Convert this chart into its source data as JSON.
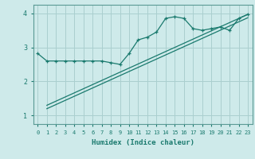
{
  "bg_color": "#ceeaea",
  "grid_color": "#aacfcf",
  "line_color": "#1a7a6e",
  "x_label": "Humidex (Indice chaleur)",
  "xlim": [
    -0.5,
    23.5
  ],
  "ylim": [
    0.75,
    4.25
  ],
  "yticks": [
    1,
    2,
    3,
    4
  ],
  "xticks": [
    0,
    1,
    2,
    3,
    4,
    5,
    6,
    7,
    8,
    9,
    10,
    11,
    12,
    13,
    14,
    15,
    16,
    17,
    18,
    19,
    20,
    21,
    22,
    23
  ],
  "data_line": {
    "x": [
      0,
      1,
      2,
      3,
      4,
      5,
      6,
      7,
      8,
      9,
      10,
      11,
      12,
      13,
      14,
      15,
      16,
      17,
      18,
      19,
      20,
      21,
      22,
      23
    ],
    "y": [
      2.82,
      2.6,
      2.6,
      2.6,
      2.6,
      2.6,
      2.6,
      2.6,
      2.55,
      2.5,
      2.82,
      3.22,
      3.3,
      3.45,
      3.85,
      3.9,
      3.85,
      3.55,
      3.5,
      3.55,
      3.6,
      3.5,
      3.85,
      3.97
    ]
  },
  "trend_line1": {
    "x": [
      1,
      23
    ],
    "y": [
      1.3,
      3.97
    ]
  },
  "trend_line2": {
    "x": [
      1,
      23
    ],
    "y": [
      1.2,
      3.87
    ]
  }
}
